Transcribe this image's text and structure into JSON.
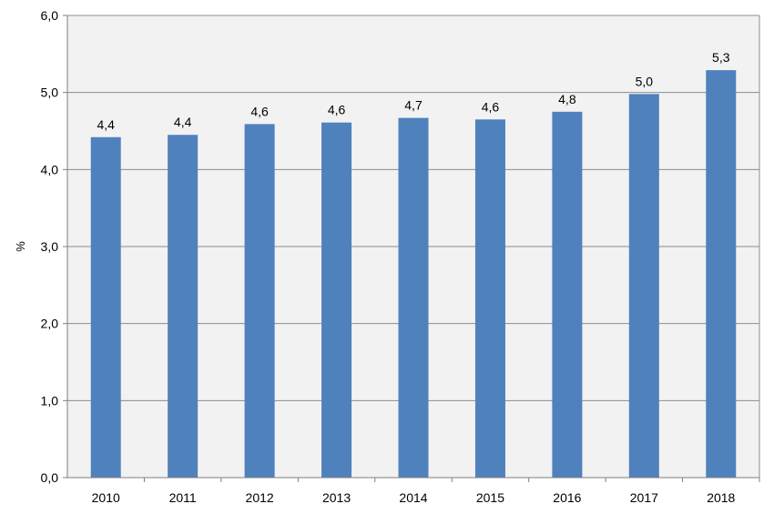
{
  "chart_data": {
    "type": "bar",
    "categories": [
      "2010",
      "2011",
      "2012",
      "2013",
      "2014",
      "2015",
      "2016",
      "2017",
      "2018"
    ],
    "values": [
      4.42,
      4.45,
      4.59,
      4.61,
      4.67,
      4.65,
      4.75,
      4.98,
      5.29
    ],
    "data_labels": [
      "4,4",
      "4,4",
      "4,6",
      "4,6",
      "4,7",
      "4,6",
      "4,8",
      "5,0",
      "5,3"
    ],
    "title": "",
    "xlabel": "",
    "ylabel": "%",
    "ylim": [
      0,
      6
    ],
    "yticks": [
      0,
      1,
      2,
      3,
      4,
      5,
      6
    ],
    "ytick_labels": [
      "0,0",
      "1,0",
      "2,0",
      "3,0",
      "4,0",
      "5,0",
      "6,0"
    ],
    "grid": true,
    "legend": "none",
    "colors": {
      "bar": "#4F81BD",
      "plot_background": "#F2F2F2",
      "gridline": "#8C8C8C"
    }
  }
}
